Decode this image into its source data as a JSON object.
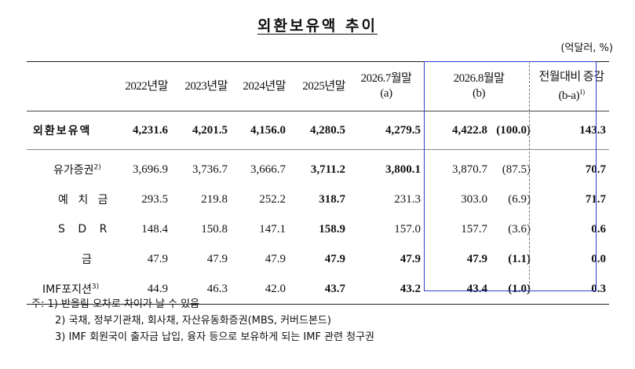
{
  "title": "외환보유액 추이",
  "unit": "(억달러, %)",
  "headers": {
    "c1": "2022년말",
    "c2": "2023년말",
    "c3": "2024년말",
    "c4": "2025년말",
    "c5_line1": "2026.7월말",
    "c5_line2": "(a)",
    "c6_line1": "2026.8월말",
    "c6_line2": "(b)",
    "c7_line1": "전월대비 증감",
    "c7_line2": "(b-a)",
    "c7_sup": "1)"
  },
  "total": {
    "label": "외환보유액",
    "values": [
      "4,231.6",
      "4,201.5",
      "4,156.0",
      "4,280.5",
      "4,279.5",
      "4,422.8",
      "(100.0)",
      "143.3"
    ]
  },
  "rows": [
    {
      "label": "유가증권",
      "sup": "2)",
      "values": [
        "3,696.9",
        "3,736.7",
        "3,666.7",
        "3,711.2",
        "3,800.1",
        "3,870.7",
        "(87.5)",
        "70.7"
      ]
    },
    {
      "label": "예 치 금",
      "sup": "",
      "values": [
        "293.5",
        "219.8",
        "252.2",
        "318.7",
        "231.3",
        "303.0",
        "(6.9)",
        "71.7"
      ]
    },
    {
      "label": "S D R",
      "sup": "",
      "values": [
        "148.4",
        "150.8",
        "147.1",
        "158.9",
        "157.0",
        "157.7",
        "(3.6)",
        "0.6"
      ]
    },
    {
      "label": "금",
      "sup": "",
      "values": [
        "47.9",
        "47.9",
        "47.9",
        "47.9",
        "47.9",
        "47.9",
        "(1.1)",
        "0.0"
      ]
    },
    {
      "label": "IMF포지션",
      "sup": "3)",
      "values": [
        "44.9",
        "46.3",
        "42.0",
        "43.7",
        "43.2",
        "43.4",
        "(1.0)",
        "0.3"
      ]
    }
  ],
  "notes": {
    "n1": "주: 1) 반올림 오차로 차이가 날 수 있음",
    "n2": "2) 국채, 정부기관채, 회사채, 자산유동화증권(MBS, 커버드본드)",
    "n3": "3) IMF 회원국이 출자금 납입, 융자 등으로 보유하게 되는 IMF 관련 청구권"
  }
}
